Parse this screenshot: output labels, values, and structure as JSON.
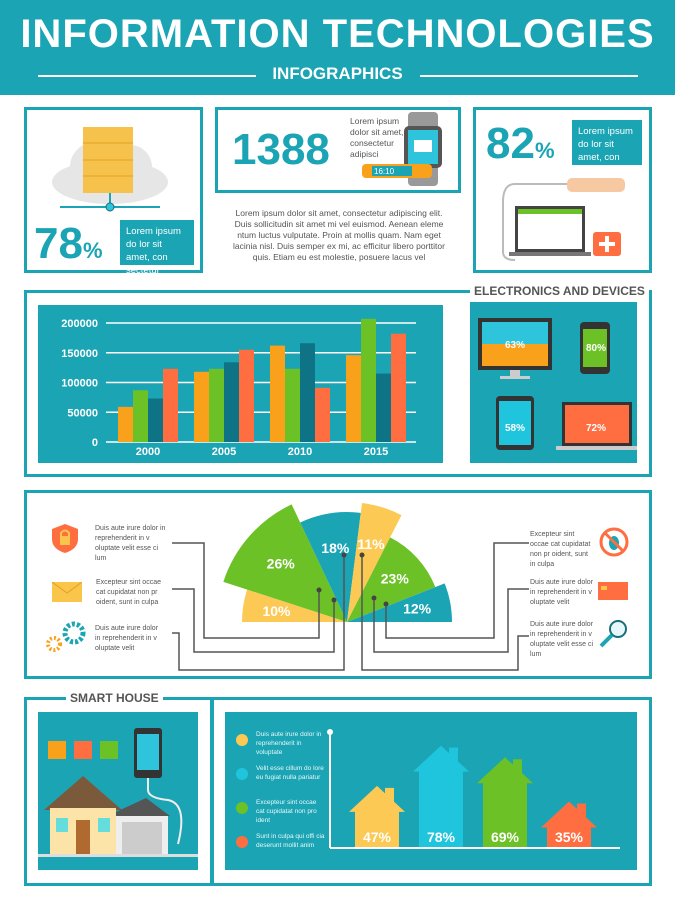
{
  "header": {
    "title": "INFORMATION TECHNOLOGIES",
    "subtitle": "INFOGRAPHICS"
  },
  "stats": {
    "cloud": {
      "value": "78",
      "unit": "%",
      "text": "Lorem ipsum do lor sit amet, con sectetur adipisci"
    },
    "watch": {
      "value": "1388",
      "text": "Lorem ipsum dolor sit amet, consectetur adipisci",
      "band_time": "16:10"
    },
    "medical": {
      "value": "82",
      "unit": "%",
      "text": "Lorem ipsum do lor sit amet, con sectetur adipisci"
    },
    "paragraph": "Lorem ipsum dolor sit amet, consectetur adipiscing elit. Duis sollicitudin sit amet mi vel euismod. Aenean eleme ntum luctus vulputate. Proin at mollis quam. Nam eget lacinia nisl. Duis semper ex mi, ac efficitur libero porttitor quis. Etiam eu est molestie, posuere lacus vel"
  },
  "devices": {
    "title": "ELECTRONICS AND DEVICES",
    "items": [
      {
        "name": "monitor",
        "value": "63%"
      },
      {
        "name": "phone",
        "value": "80%"
      },
      {
        "name": "tablet",
        "value": "58%"
      },
      {
        "name": "laptop",
        "value": "72%"
      }
    ]
  },
  "colors": {
    "teal": "#1ba4b4",
    "orange": "#f9a11b",
    "green": "#6cc126",
    "dark_teal": "#0e7385",
    "red": "#ff6e40",
    "yellow": "#fcc954",
    "cyan": "#1ec5dc"
  },
  "chart_data": [
    {
      "type": "bar",
      "title": "",
      "xlabel": "",
      "ylabel": "",
      "ylim": [
        0,
        200000
      ],
      "yticks": [
        "0",
        "50000",
        "100000",
        "150000",
        "200000"
      ],
      "categories": [
        "2000",
        "2005",
        "2010",
        "2015"
      ],
      "series": [
        {
          "name": "orange",
          "values": [
            59000,
            118000,
            162000,
            146000
          ]
        },
        {
          "name": "green",
          "values": [
            87000,
            123000,
            123000,
            207000
          ]
        },
        {
          "name": "dark teal",
          "values": [
            73000,
            134000,
            166000,
            115000
          ]
        },
        {
          "name": "red",
          "values": [
            123000,
            155000,
            91000,
            182000
          ]
        }
      ]
    },
    {
      "type": "pie",
      "title": "",
      "slices": [
        {
          "label": "10%",
          "value": 10
        },
        {
          "label": "26%",
          "value": 26
        },
        {
          "label": "18%",
          "value": 18
        },
        {
          "label": "11%",
          "value": 11
        },
        {
          "label": "23%",
          "value": 23
        },
        {
          "label": "12%",
          "value": 12
        }
      ]
    },
    {
      "type": "bar",
      "title": "",
      "categories": [
        "Duis aute irure dolor in reprehenderit in voluptate",
        "Velit esse cillum do lore eu fugiat nulla pariatur",
        "Excepteur sint occae cat cupidatat non pro ident",
        "Sunt in culpa qui offi cia deserunt mollit anim"
      ],
      "values": [
        47,
        78,
        69,
        35
      ],
      "labels": [
        "47%",
        "78%",
        "69%",
        "35%"
      ]
    }
  ],
  "features": {
    "left": [
      "Duis aute irure dolor in reprehenderit in v oluptate velit esse ci lum",
      "Excepteur sint occae cat cupidatat non pr oident, sunt in culpa",
      "Duis aute irure dolor in reprehenderit in v oluptate velit"
    ],
    "right": [
      "Excepteur sint occae cat cupidatat non pr oident, sunt in culpa",
      "Duis aute irure dolor in reprehenderit in v oluptate velit",
      "Duis aute irure dolor in reprehenderit in v oluptate velit esse ci lum"
    ]
  },
  "smart_house": {
    "title": "SMART HOUSE"
  }
}
